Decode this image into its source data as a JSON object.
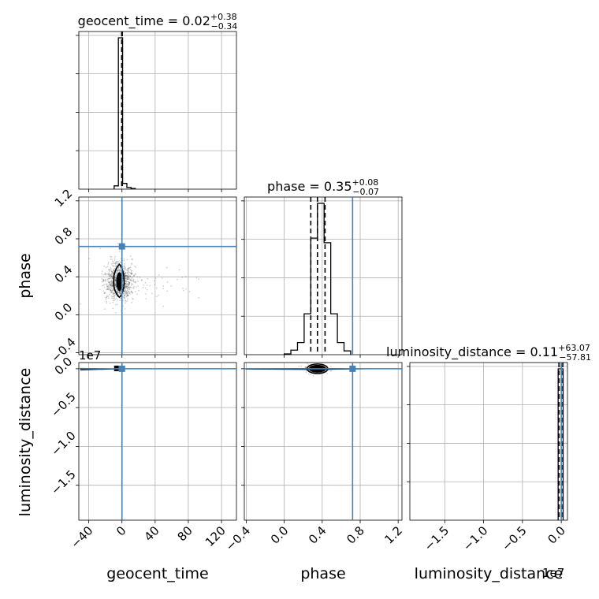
{
  "chart_data": {
    "type": "corner",
    "parameters": [
      "geocent_time",
      "phase",
      "luminosity_distance"
    ],
    "titles": [
      {
        "name": "geocent_time",
        "median": "0.02",
        "plus": "+0.38",
        "minus": "−0.34"
      },
      {
        "name": "phase",
        "median": "0.35",
        "plus": "+0.08",
        "minus": "−0.07"
      },
      {
        "name": "luminosity_distance",
        "median": "0.11",
        "plus": "+63.07",
        "minus": "−57.81"
      }
    ],
    "axes": {
      "geocent_time": {
        "range": [
          -52,
          138
        ],
        "ticks": [
          -40,
          0,
          40,
          80,
          120
        ],
        "tick_labels": [
          "−40",
          "0",
          "40",
          "80",
          "120"
        ]
      },
      "phase": {
        "range": [
          -0.42,
          1.24
        ],
        "ticks": [
          -0.4,
          0.0,
          0.4,
          0.8,
          1.2
        ],
        "tick_labels": [
          "−0.4",
          "0.0",
          "0.4",
          "0.8",
          "1.2"
        ]
      },
      "luminosity_distance": {
        "range": [
          -1.95,
          0.08
        ],
        "ticks": [
          -1.5,
          -1.0,
          -0.5,
          0.0
        ],
        "tick_labels": [
          "−1.5",
          "−1.0",
          "−0.5",
          "0.0"
        ],
        "offset_label": "1e7"
      }
    },
    "truths": {
      "geocent_time": 0.0,
      "phase": 0.72,
      "luminosity_distance": 0.0
    },
    "quantiles": {
      "geocent_time": [
        -0.3,
        0.0,
        0.4
      ],
      "phase": [
        0.28,
        0.35,
        0.43
      ],
      "luminosity_distance": [
        -0.03,
        0.0,
        0.02
      ]
    },
    "hist_geocent_time": {
      "edges": [
        -9.4,
        -4.3,
        0.8,
        5.9,
        11,
        16.1
      ],
      "counts": [
        2,
        92,
        3.5,
        1,
        0.4
      ]
    },
    "hist_phase": {
      "edges": [
        0.0,
        0.07,
        0.14,
        0.21,
        0.28,
        0.35,
        0.42,
        0.49,
        0.56,
        0.63,
        0.7
      ],
      "counts": [
        0.5,
        3,
        8,
        27,
        77,
        100,
        74,
        27,
        8,
        2.5
      ]
    },
    "hist_luminosity_distance": {
      "edges": [
        -0.04,
        -0.008,
        0.024
      ],
      "counts": [
        100,
        100
      ]
    },
    "grid": true
  }
}
